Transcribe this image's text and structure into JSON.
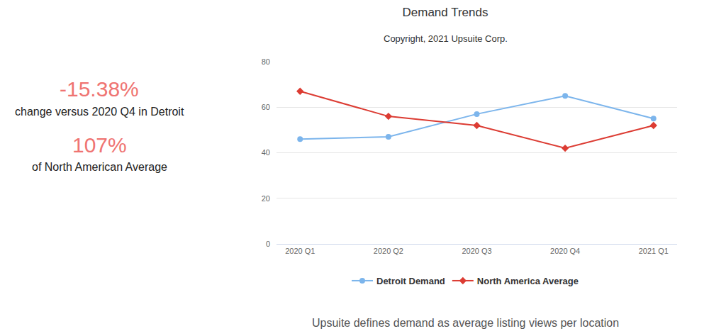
{
  "chart_data": {
    "type": "line",
    "title": "Demand Trends",
    "subtitle": "Copyright, 2021 Upsuite Corp.",
    "categories": [
      "2020 Q1",
      "2020 Q2",
      "2020 Q3",
      "2020 Q4",
      "2021 Q1"
    ],
    "series": [
      {
        "name": "Detroit Demand",
        "color": "#7cb5ec",
        "marker": "circle",
        "values": [
          46,
          47,
          57,
          65,
          55
        ]
      },
      {
        "name": "North America Average",
        "color": "#dc3c33",
        "marker": "diamond",
        "values": [
          67,
          56,
          52,
          42,
          52
        ]
      }
    ],
    "ylim": [
      0,
      80
    ],
    "yticks": [
      0,
      20,
      40,
      60,
      80
    ],
    "grid": true,
    "legend": "bottom",
    "annotations": [
      "-15.38%",
      "change versus 2020 Q4 in Detroit",
      "107%",
      "of North American Average",
      "Upsuite defines demand as average listing views per location"
    ]
  }
}
